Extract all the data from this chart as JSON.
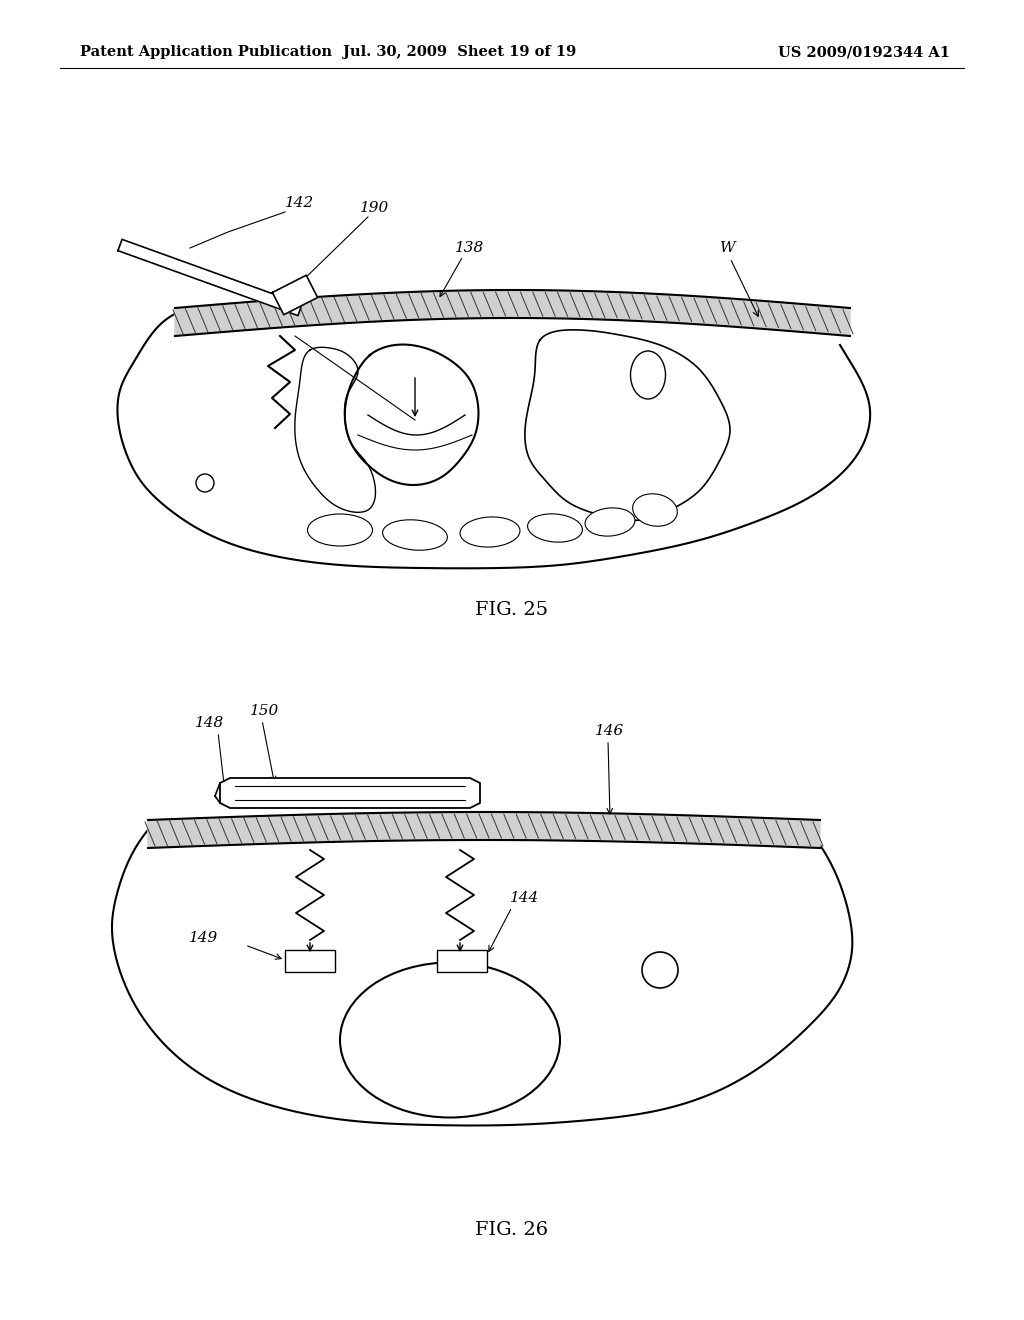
{
  "background_color": "#ffffff",
  "header_left": "Patent Application Publication",
  "header_mid": "Jul. 30, 2009  Sheet 19 of 19",
  "header_right": "US 2009/0192344 A1",
  "header_fontsize": 10.5,
  "fig25_label": "FIG. 25",
  "fig26_label": "FIG. 26",
  "label_fontsize": 14,
  "line_color": "#000000",
  "hatch_color": "#555555",
  "text_color": "#000000",
  "annot_fontsize": 11
}
